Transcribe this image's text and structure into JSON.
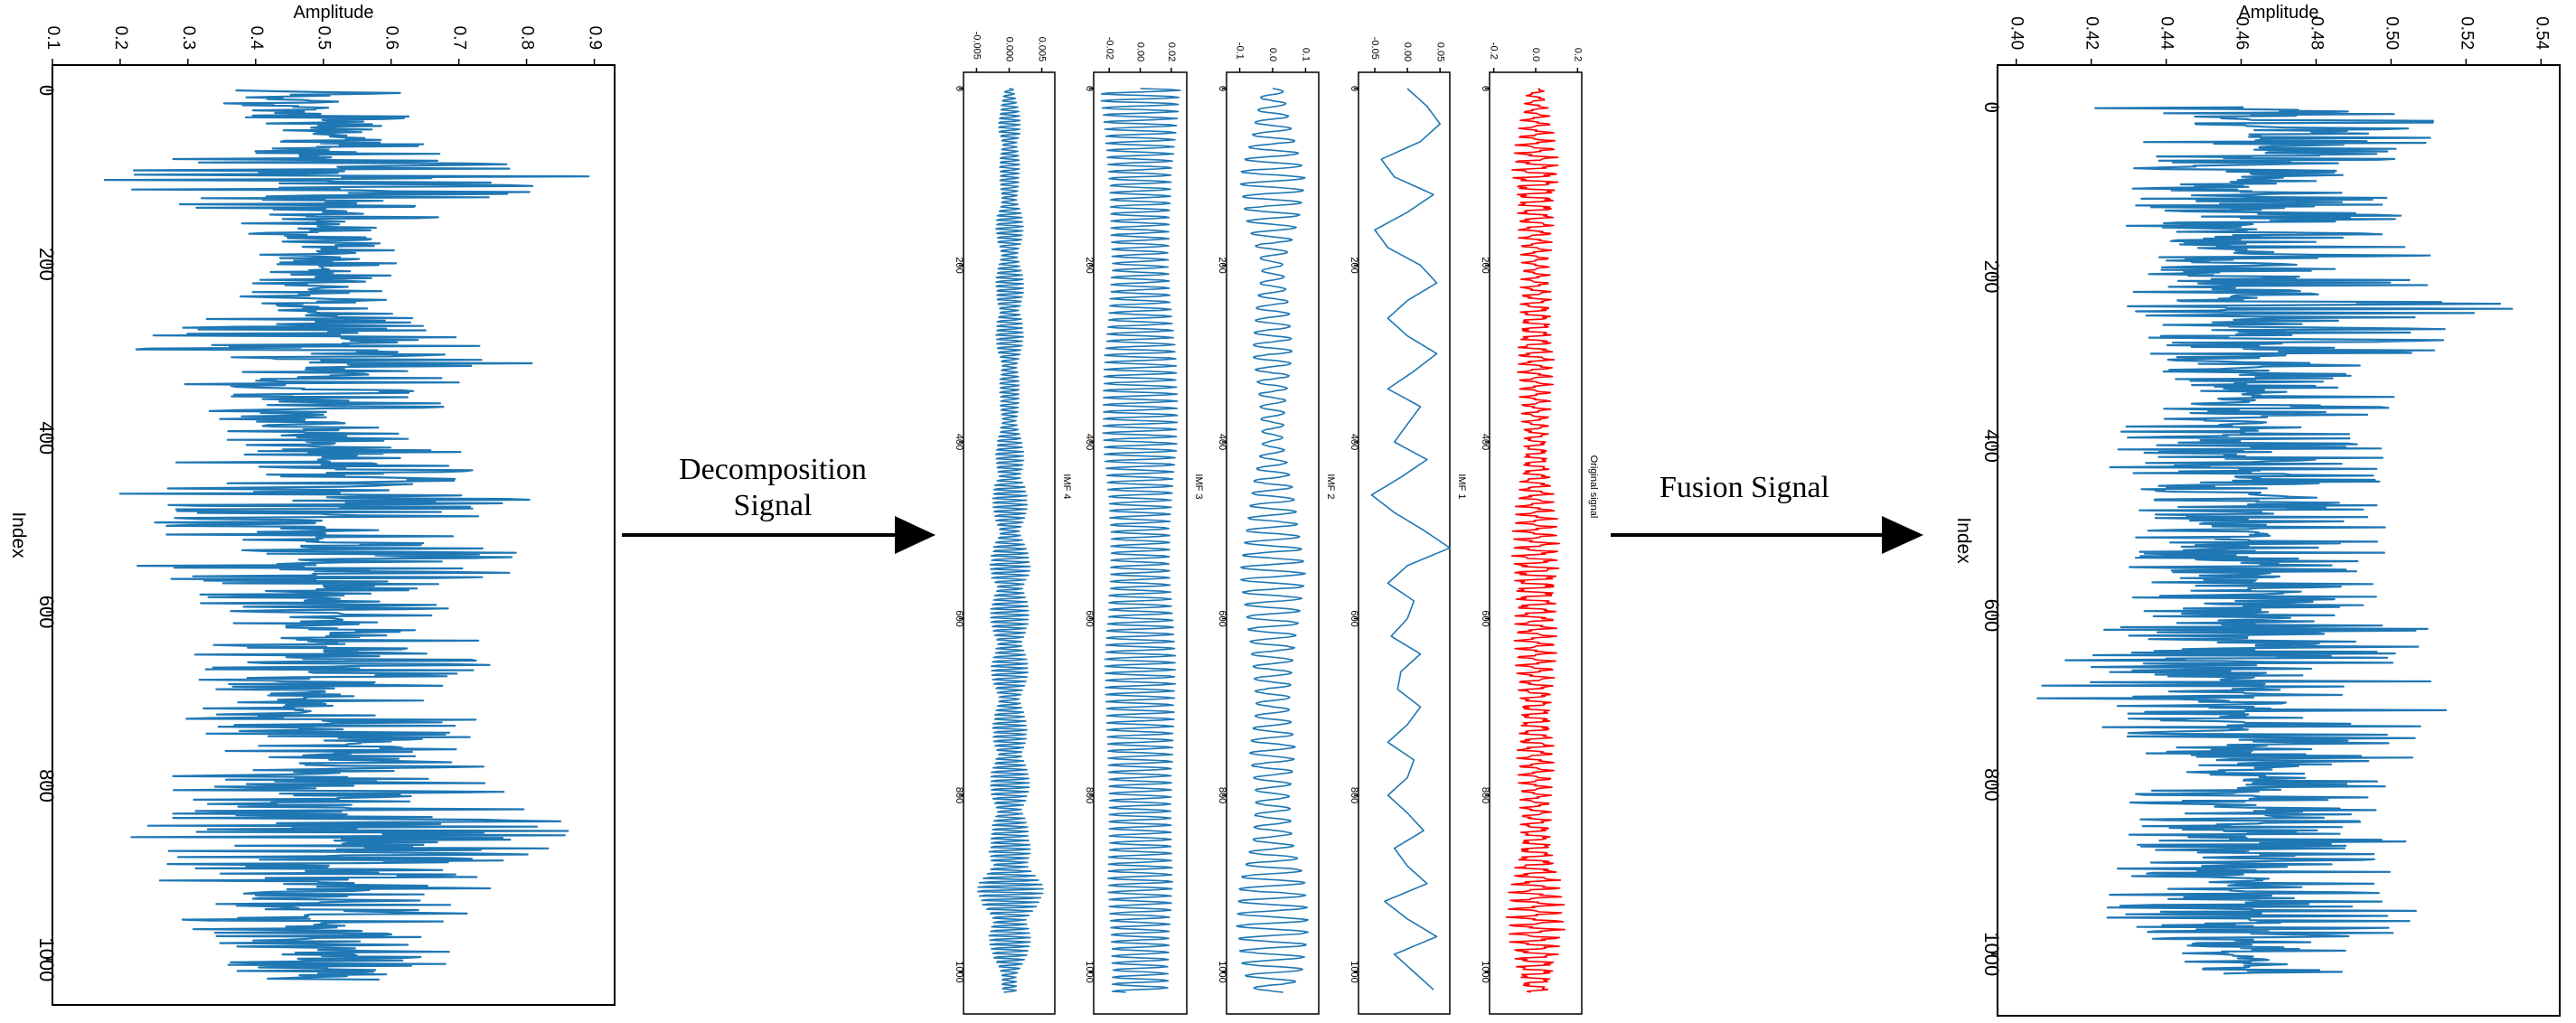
{
  "colors": {
    "signal": "#1f77b4",
    "original": "#ff0000",
    "axis": "#000000",
    "background": "#ffffff"
  },
  "arrows": {
    "decomposition": {
      "line1": "Decomposition",
      "line2": "Signal"
    },
    "fusion": {
      "label": "Fusion Signal"
    }
  },
  "chart_data": [
    {
      "id": "input-signal",
      "type": "line",
      "orientation": "rotated-90",
      "xlabel": "Index",
      "ylabel": "Amplitude",
      "xlim": [
        0,
        1023
      ],
      "ylim": [
        0.1,
        0.93
      ],
      "xticks": [
        0,
        200,
        400,
        600,
        800,
        1000
      ],
      "xtick_labels": [
        "0",
        "200",
        "400",
        "600",
        "800",
        "1000"
      ],
      "yticks": [
        0.1,
        0.2,
        0.3,
        0.4,
        0.5,
        0.6,
        0.7,
        0.8,
        0.9
      ],
      "ytick_labels": [
        "0.1",
        "0.2",
        "0.3",
        "0.4",
        "0.5",
        "0.6",
        "0.7",
        "0.8",
        "0.9"
      ],
      "series": [
        {
          "color": "#1f77b4",
          "x": [
            0,
            50,
            100,
            150,
            200,
            250,
            300,
            350,
            400,
            450,
            500,
            550,
            600,
            650,
            700,
            750,
            800,
            850,
            900,
            950,
            1000,
            1023
          ],
          "y": [
            0.48,
            0.5,
            0.52,
            0.49,
            0.5,
            0.47,
            0.55,
            0.5,
            0.46,
            0.54,
            0.5,
            0.48,
            0.52,
            0.5,
            0.47,
            0.52,
            0.5,
            0.55,
            0.5,
            0.48,
            0.5,
            0.49
          ],
          "min": [
            0.3,
            0.42,
            0.09,
            0.36,
            0.4,
            0.34,
            0.19,
            0.3,
            0.35,
            0.18,
            0.25,
            0.22,
            0.31,
            0.27,
            0.25,
            0.28,
            0.22,
            0.2,
            0.24,
            0.27,
            0.3,
            0.35
          ],
          "max": [
            0.66,
            0.63,
            0.9,
            0.67,
            0.62,
            0.66,
            0.86,
            0.73,
            0.66,
            0.84,
            0.77,
            0.8,
            0.73,
            0.76,
            0.74,
            0.73,
            0.79,
            0.88,
            0.78,
            0.72,
            0.7,
            0.64
          ]
        }
      ]
    },
    {
      "id": "imf-4",
      "type": "line",
      "orientation": "rotated-90",
      "title": "IMF 4",
      "xlim": [
        0,
        1023
      ],
      "ylim": [
        -0.007,
        0.007
      ],
      "xticks": [
        0,
        200,
        400,
        600,
        800,
        1000
      ],
      "xtick_labels": [
        "0",
        "200",
        "400",
        "600",
        "800",
        "1000"
      ],
      "yticks": [
        -0.005,
        0.0,
        0.005
      ],
      "ytick_labels": [
        "-0.005",
        "0.000",
        "0.005"
      ],
      "series": [
        {
          "color": "#1f77b4",
          "x": [
            0,
            50,
            100,
            150,
            200,
            250,
            300,
            350,
            400,
            450,
            500,
            550,
            600,
            650,
            700,
            750,
            800,
            850,
            900,
            950,
            1000,
            1023
          ],
          "amplitude": [
            0.001,
            0.002,
            0.0015,
            0.0022,
            0.002,
            0.0025,
            0.002,
            0.0015,
            0.002,
            0.003,
            0.0025,
            0.0035,
            0.003,
            0.003,
            0.0025,
            0.003,
            0.0032,
            0.003,
            0.0055,
            0.004,
            0.002,
            0.0012
          ]
        }
      ]
    },
    {
      "id": "imf-3",
      "type": "line",
      "orientation": "rotated-90",
      "title": "IMF 3",
      "xlim": [
        0,
        1023
      ],
      "ylim": [
        -0.03,
        0.03
      ],
      "xticks": [
        0,
        200,
        400,
        600,
        800,
        1000
      ],
      "xtick_labels": [
        "0",
        "200",
        "400",
        "600",
        "800",
        "1000"
      ],
      "yticks": [
        -0.02,
        0.0,
        0.02
      ],
      "ytick_labels": [
        "-0.02",
        "0.00",
        "0.02"
      ],
      "series": [
        {
          "color": "#1f77b4",
          "x": [
            0,
            50,
            100,
            150,
            200,
            250,
            300,
            350,
            400,
            450,
            500,
            550,
            600,
            650,
            700,
            750,
            800,
            850,
            900,
            950,
            1000,
            1023
          ],
          "amplitude": [
            0.026,
            0.023,
            0.02,
            0.019,
            0.018,
            0.02,
            0.023,
            0.024,
            0.024,
            0.021,
            0.019,
            0.019,
            0.021,
            0.023,
            0.022,
            0.021,
            0.02,
            0.02,
            0.021,
            0.019,
            0.018,
            0.018
          ]
        }
      ]
    },
    {
      "id": "imf-2",
      "type": "line",
      "orientation": "rotated-90",
      "title": "IMF 2",
      "xlim": [
        0,
        1023
      ],
      "ylim": [
        -0.14,
        0.14
      ],
      "xticks": [
        0,
        200,
        400,
        600,
        800,
        1000
      ],
      "xtick_labels": [
        "0",
        "200",
        "400",
        "600",
        "800",
        "1000"
      ],
      "yticks": [
        -0.1,
        0.0,
        0.1
      ],
      "ytick_labels": [
        "-0.1",
        "0.0",
        "0.1"
      ],
      "series": [
        {
          "color": "#1f77b4",
          "x": [
            0,
            50,
            100,
            150,
            200,
            250,
            300,
            350,
            400,
            450,
            500,
            550,
            600,
            650,
            700,
            750,
            800,
            850,
            900,
            950,
            1000,
            1023
          ],
          "amplitude": [
            0.03,
            0.06,
            0.1,
            0.08,
            0.03,
            0.05,
            0.06,
            0.04,
            0.03,
            0.06,
            0.08,
            0.1,
            0.08,
            0.06,
            0.05,
            0.07,
            0.05,
            0.06,
            0.1,
            0.11,
            0.09,
            0.05
          ]
        }
      ]
    },
    {
      "id": "imf-1",
      "type": "line",
      "orientation": "rotated-90",
      "title": "IMF 1",
      "xlim": [
        0,
        1023
      ],
      "ylim": [
        -0.075,
        0.065
      ],
      "xticks": [
        0,
        200,
        400,
        600,
        800,
        1000
      ],
      "xtick_labels": [
        "0",
        "200",
        "400",
        "600",
        "800",
        "1000"
      ],
      "yticks": [
        -0.05,
        0.0,
        0.05
      ],
      "ytick_labels": [
        "-0.05",
        "0.00",
        "0.05"
      ],
      "series": [
        {
          "color": "#1f77b4",
          "x": [
            0,
            20,
            40,
            60,
            80,
            100,
            120,
            140,
            160,
            180,
            200,
            220,
            240,
            260,
            280,
            300,
            320,
            340,
            360,
            380,
            400,
            420,
            440,
            460,
            480,
            500,
            520,
            540,
            560,
            580,
            600,
            620,
            640,
            660,
            680,
            700,
            720,
            740,
            760,
            780,
            800,
            820,
            840,
            860,
            880,
            900,
            920,
            940,
            960,
            980,
            1000,
            1020
          ],
          "y": [
            0.0,
            0.03,
            0.05,
            0.02,
            -0.04,
            -0.02,
            0.04,
            0.0,
            -0.05,
            -0.03,
            0.02,
            0.045,
            0.0,
            -0.03,
            0.0,
            0.045,
            0.01,
            -0.03,
            0.02,
            0.0,
            -0.02,
            0.03,
            -0.01,
            -0.055,
            -0.02,
            0.025,
            0.065,
            0.0,
            -0.03,
            0.01,
            0.0,
            -0.025,
            0.02,
            -0.01,
            -0.015,
            0.02,
            0.0,
            -0.03,
            0.01,
            0.0,
            -0.03,
            0.0,
            0.025,
            -0.02,
            0.0,
            0.03,
            -0.035,
            0.0,
            0.045,
            -0.02,
            0.01,
            0.04
          ]
        }
      ]
    },
    {
      "id": "original-signal",
      "type": "line",
      "orientation": "rotated-90",
      "title": "Original signal",
      "xlim": [
        0,
        1023
      ],
      "ylim": [
        -0.22,
        0.22
      ],
      "xticks": [
        0,
        200,
        400,
        600,
        800,
        1000
      ],
      "xtick_labels": [
        "0",
        "200",
        "400",
        "600",
        "800",
        "1000"
      ],
      "yticks": [
        -0.2,
        0.0,
        0.2
      ],
      "ytick_labels": [
        "-0.2",
        "0.0",
        "0.2"
      ],
      "series": [
        {
          "color": "#ff0000",
          "x": [
            0,
            50,
            100,
            150,
            200,
            250,
            300,
            350,
            400,
            450,
            500,
            550,
            600,
            650,
            700,
            750,
            800,
            850,
            900,
            950,
            1000,
            1023
          ],
          "amplitude": [
            0.04,
            0.08,
            0.12,
            0.09,
            0.06,
            0.08,
            0.09,
            0.07,
            0.06,
            0.08,
            0.1,
            0.12,
            0.1,
            0.09,
            0.08,
            0.09,
            0.07,
            0.08,
            0.12,
            0.13,
            0.1,
            0.06
          ]
        }
      ]
    },
    {
      "id": "fusion-signal",
      "type": "line",
      "orientation": "rotated-90",
      "xlabel": "Index",
      "ylabel": "Amplitude",
      "xlim": [
        -20,
        1043
      ],
      "ylim": [
        0.395,
        0.545
      ],
      "xticks": [
        0,
        200,
        400,
        600,
        800,
        1000
      ],
      "xtick_labels": [
        "0",
        "200",
        "400",
        "600",
        "800",
        "1000"
      ],
      "yticks": [
        0.4,
        0.42,
        0.44,
        0.46,
        0.48,
        0.5,
        0.52,
        0.54
      ],
      "ytick_labels": [
        "0.40",
        "0.42",
        "0.44",
        "0.46",
        "0.48",
        "0.50",
        "0.52",
        "0.54"
      ],
      "series": [
        {
          "color": "#1f77b4",
          "x": [
            0,
            50,
            100,
            150,
            200,
            250,
            300,
            350,
            400,
            450,
            500,
            550,
            600,
            650,
            700,
            750,
            800,
            850,
            900,
            950,
            1000,
            1023
          ],
          "y": [
            0.462,
            0.465,
            0.46,
            0.462,
            0.458,
            0.463,
            0.465,
            0.462,
            0.46,
            0.465,
            0.462,
            0.463,
            0.462,
            0.465,
            0.46,
            0.462,
            0.465,
            0.462,
            0.46,
            0.462,
            0.463,
            0.462
          ],
          "min": [
            0.42,
            0.43,
            0.425,
            0.43,
            0.425,
            0.43,
            0.435,
            0.44,
            0.42,
            0.43,
            0.43,
            0.43,
            0.43,
            0.41,
            0.405,
            0.42,
            0.43,
            0.43,
            0.425,
            0.42,
            0.44,
            0.44
          ],
          "max": [
            0.52,
            0.52,
            0.505,
            0.51,
            0.515,
            0.54,
            0.505,
            0.5,
            0.505,
            0.5,
            0.5,
            0.5,
            0.51,
            0.51,
            0.525,
            0.51,
            0.505,
            0.51,
            0.5,
            0.515,
            0.49,
            0.49
          ]
        }
      ]
    }
  ]
}
